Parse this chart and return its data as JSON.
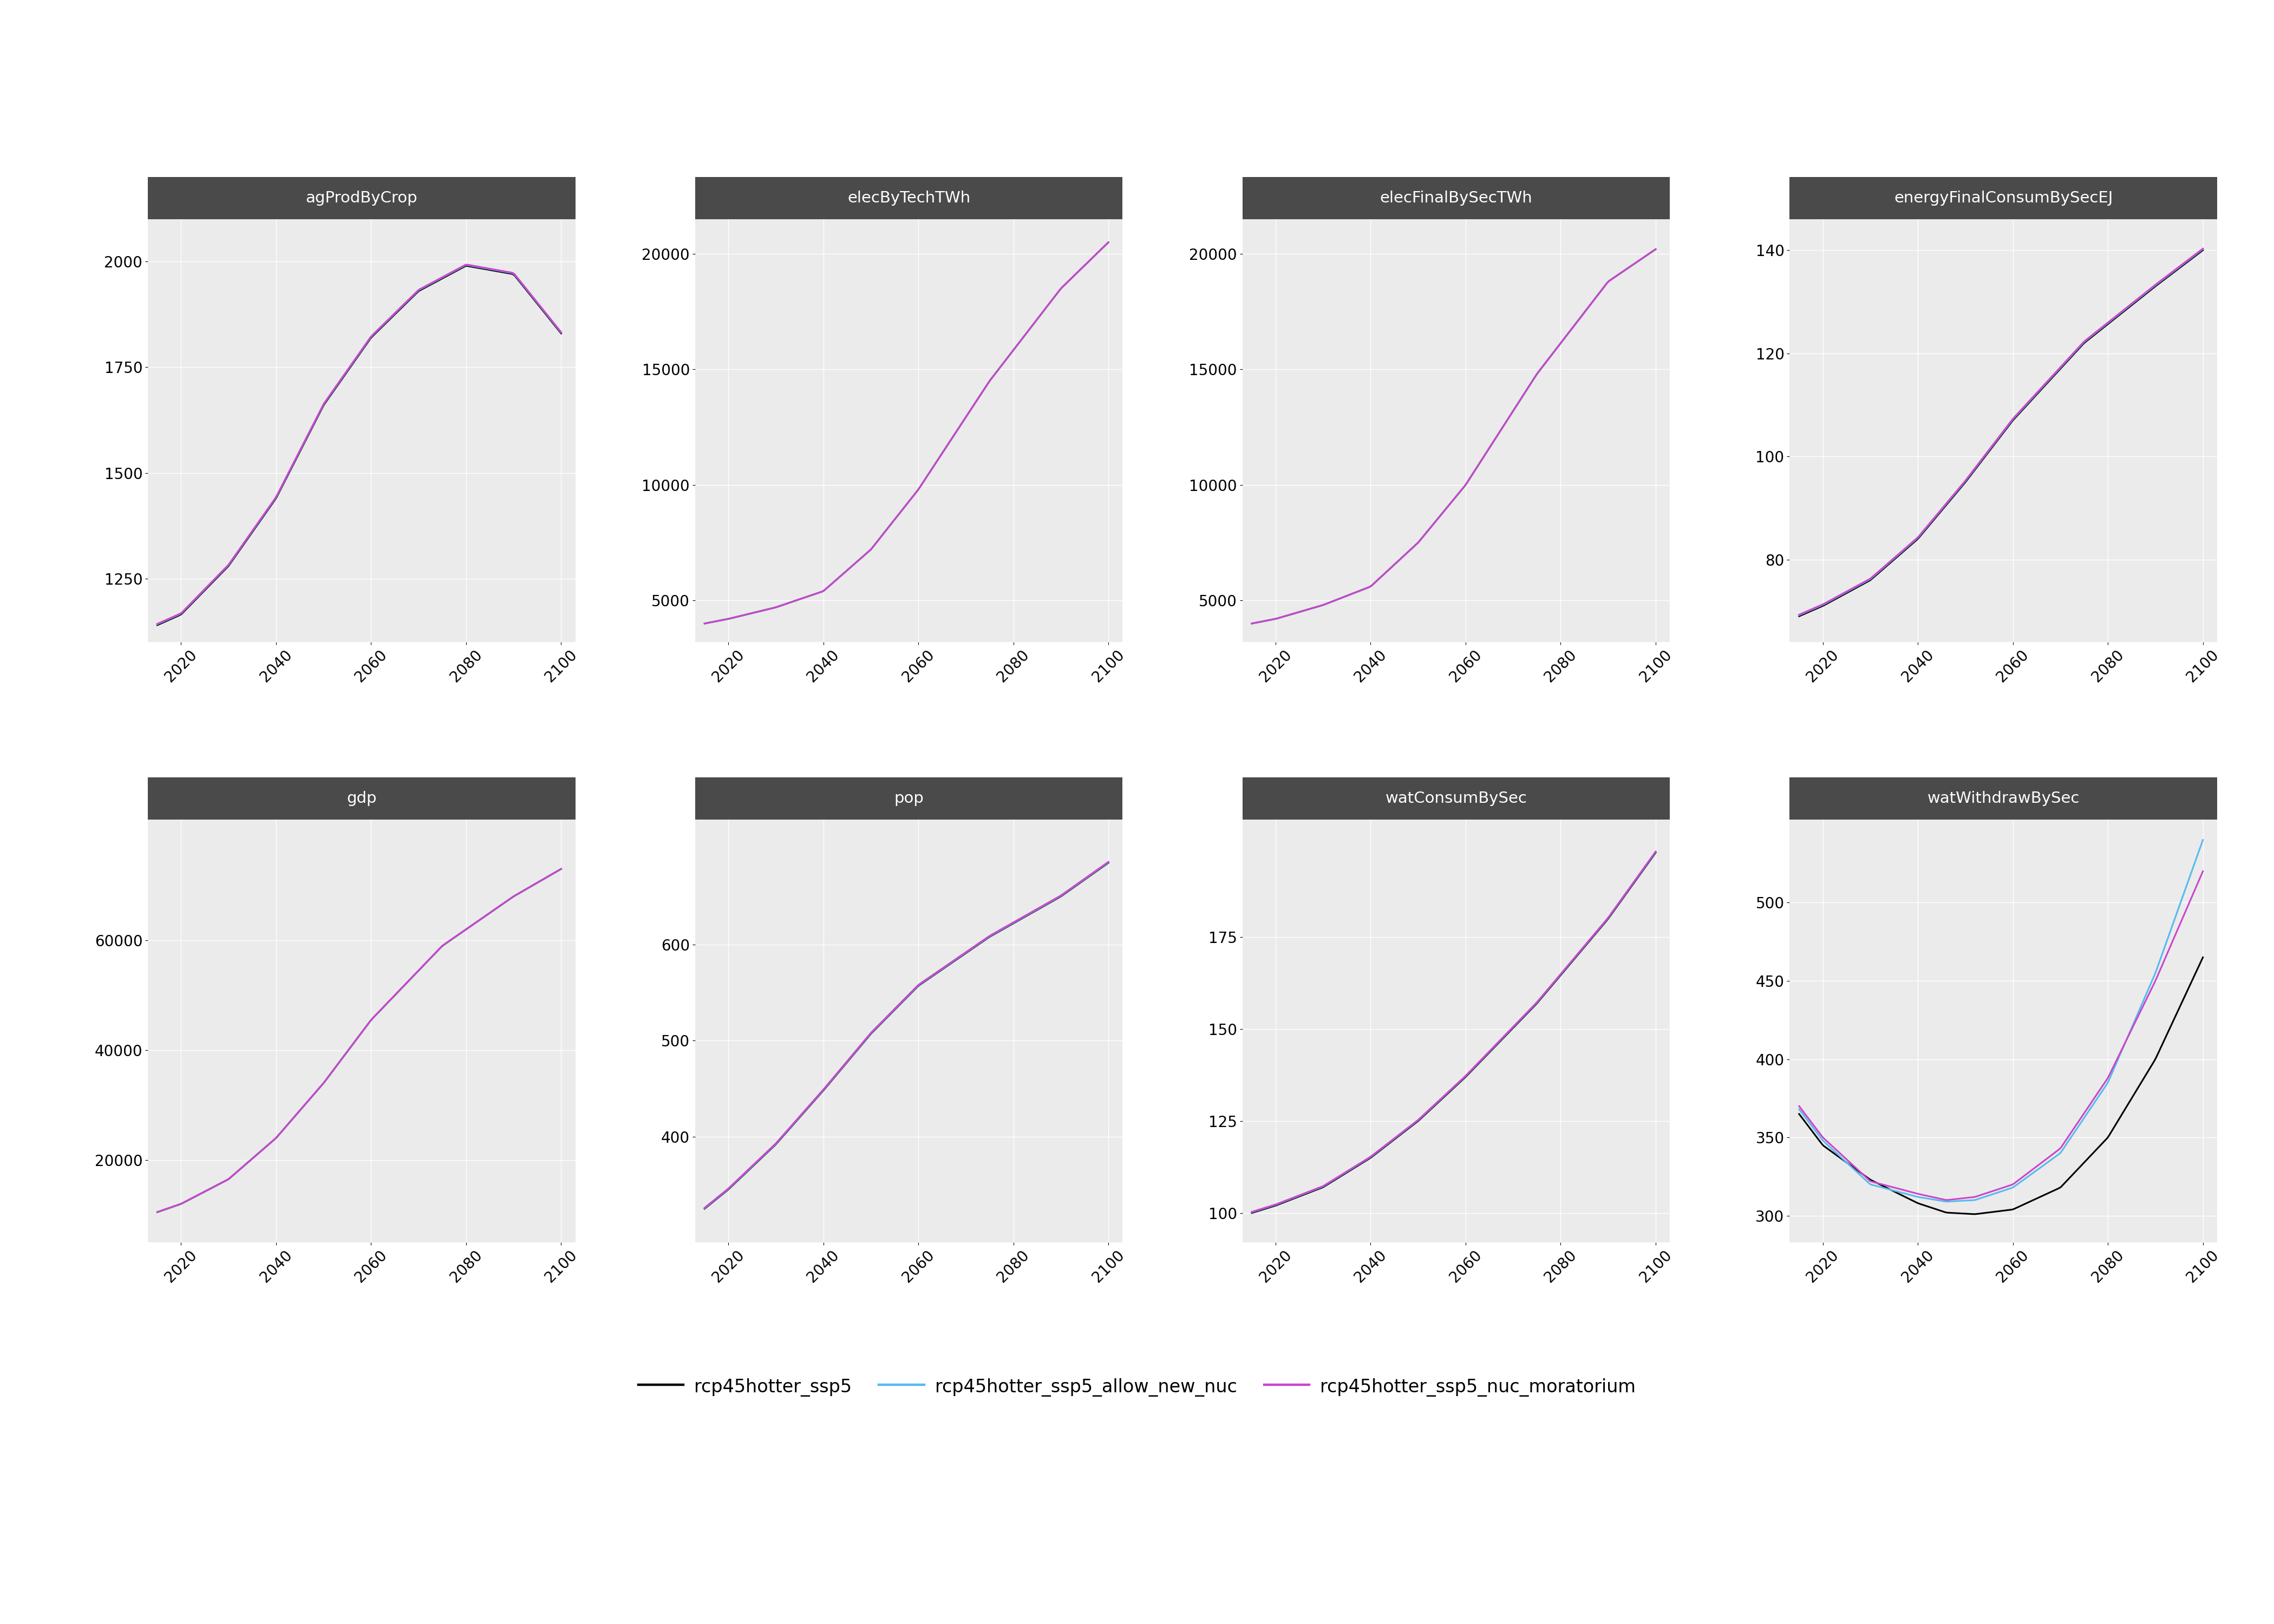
{
  "titles_order": [
    "agProdByCrop",
    "elecByTechTWh",
    "elecFinalBySecTWh",
    "energyFinalConsumBySecEJ",
    "gdp",
    "pop",
    "watConsumBySec",
    "watWithdrawBySec"
  ],
  "x_ticks": [
    2020,
    2040,
    2060,
    2080,
    2100
  ],
  "xlim": [
    2013,
    2103
  ],
  "ylims": {
    "agProdByCrop": [
      1100,
      2100
    ],
    "elecByTechTWh": [
      3200,
      21500
    ],
    "elecFinalBySecTWh": [
      3200,
      21500
    ],
    "energyFinalConsumBySecEJ": [
      64,
      146
    ],
    "gdp": [
      5000,
      82000
    ],
    "pop": [
      290,
      730
    ],
    "watConsumBySec": [
      92,
      207
    ],
    "watWithdrawBySec": [
      283,
      553
    ]
  },
  "yticks": {
    "agProdByCrop": [
      1250,
      1500,
      1750,
      2000
    ],
    "elecByTechTWh": [
      5000,
      10000,
      15000,
      20000
    ],
    "elecFinalBySecTWh": [
      5000,
      10000,
      15000,
      20000
    ],
    "energyFinalConsumBySecEJ": [
      80,
      100,
      120,
      140
    ],
    "gdp": [
      20000,
      40000,
      60000
    ],
    "pop": [
      400,
      500,
      600
    ],
    "watConsumBySec": [
      100,
      125,
      150,
      175
    ],
    "watWithdrawBySec": [
      300,
      350,
      400,
      450,
      500
    ]
  },
  "series_colors": {
    "black": "#000000",
    "blue": "#55BBEE",
    "magenta": "#CC44CC"
  },
  "panel_bg": "#EBEBEB",
  "grid_color": "#FFFFFF",
  "title_bg": "#4A4A4A",
  "title_fg": "#FFFFFF",
  "figure_bg": "#FFFFFF",
  "line_width": 2.2,
  "legend_labels": [
    "rcp45hotter_ssp5",
    "rcp45hotter_ssp5_allow_new_nuc",
    "rcp45hotter_ssp5_nuc_moratorium"
  ]
}
